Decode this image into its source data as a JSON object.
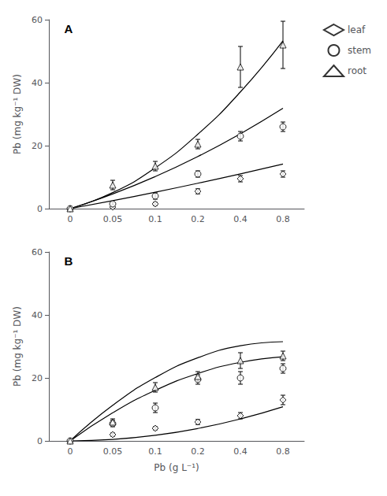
{
  "chart_data": [
    {
      "type": "scatter",
      "annotation": "A",
      "ylabel": "Pb (mg kg⁻¹ DW)",
      "categories": [
        "0",
        "0.05",
        "0.1",
        "0.2",
        "0.4",
        "0.8"
      ],
      "ylim": [
        0,
        60
      ],
      "yticks": [
        0,
        20,
        40,
        60
      ],
      "grid": false,
      "legend": "right",
      "color": "#000000",
      "series": [
        {
          "name": "leaf",
          "marker": "diamond",
          "values": [
            0,
            0.5,
            1.5,
            5.5,
            9.5,
            11.0
          ],
          "errors": [
            0,
            0.3,
            0.5,
            0.8,
            1.0,
            1.0
          ],
          "fit": [
            0,
            2.542857,
            5.228571,
            8.057143,
            11.028571,
            14.142857
          ]
        },
        {
          "name": "stem",
          "marker": "circle",
          "values": [
            0,
            1.5,
            4.0,
            11.0,
            23.0,
            26.0
          ],
          "errors": [
            0,
            0.5,
            1.0,
            1.0,
            1.5,
            1.5
          ],
          "fit": [
            0,
            4.657143,
            10.171429,
            16.542857,
            23.771429,
            31.857143
          ]
        },
        {
          "name": "root",
          "marker": "triangle",
          "values": [
            0,
            7.5,
            13.5,
            20.5,
            45.0,
            52.0
          ],
          "errors": [
            0,
            1.5,
            1.5,
            1.5,
            6.5,
            7.5
          ],
          "fit": [
            0,
            5.085714,
            12.957143,
            23.614286,
            37.057143,
            53.285714
          ]
        }
      ]
    },
    {
      "type": "scatter",
      "annotation": "B",
      "xlabel": "Pb (g L⁻¹)",
      "ylabel": "Pb (mg kg⁻¹ DW)",
      "categories": [
        "0",
        "0.05",
        "0.1",
        "0.2",
        "0.4",
        "0.8"
      ],
      "ylim": [
        0,
        60
      ],
      "yticks": [
        0,
        20,
        40,
        60
      ],
      "grid": false,
      "color": "#000000",
      "series": [
        {
          "name": "leaf",
          "marker": "diamond",
          "values": [
            0,
            2.0,
            4.0,
            6.0,
            8.0,
            13.0
          ],
          "errors": [
            0,
            0.5,
            0.5,
            0.8,
            1.0,
            1.5
          ],
          "fit": [
            0,
            0.457143,
            1.771429,
            3.942857,
            6.971429,
            10.857143
          ]
        },
        {
          "name": "stem",
          "marker": "circle",
          "values": [
            0,
            5.5,
            10.5,
            19.5,
            20.0,
            23.0
          ],
          "errors": [
            0,
            1.0,
            1.5,
            1.5,
            2.0,
            1.5
          ],
          "fit": [
            0,
            8.914286,
            16.042857,
            21.385714,
            24.942857,
            26.714286
          ]
        },
        {
          "name": "root",
          "marker": "triangle",
          "values": [
            0,
            6.0,
            17.0,
            20.5,
            25.5,
            27.0
          ],
          "errors": [
            0,
            1.0,
            1.5,
            1.5,
            2.5,
            1.5
          ],
          "fit": [
            0,
            11.3,
            20.1,
            26.4,
            30.2,
            31.5
          ]
        }
      ]
    }
  ]
}
